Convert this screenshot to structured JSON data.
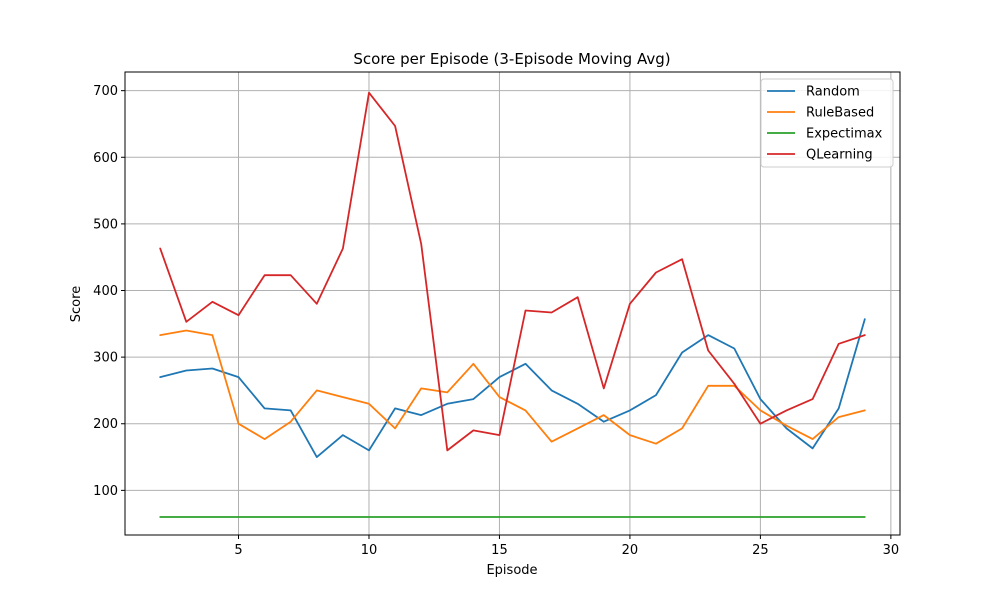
{
  "chart_data": {
    "type": "line",
    "title": "Score per Episode (3-Episode Moving Avg)",
    "xlabel": "Episode",
    "ylabel": "Score",
    "xlim": [
      0.65,
      30.35
    ],
    "ylim": [
      33,
      728
    ],
    "xticks": [
      5,
      10,
      15,
      20,
      25,
      30
    ],
    "yticks": [
      100,
      200,
      300,
      400,
      500,
      600,
      700
    ],
    "grid": true,
    "legend_position": "top-right",
    "x": [
      2,
      3,
      4,
      5,
      6,
      7,
      8,
      9,
      10,
      11,
      12,
      13,
      14,
      15,
      16,
      17,
      18,
      19,
      20,
      21,
      22,
      23,
      24,
      25,
      26,
      27,
      28,
      29
    ],
    "series": [
      {
        "name": "Random",
        "color": "#1f77b4",
        "values": [
          270,
          280,
          283,
          270,
          223,
          220,
          150,
          183,
          160,
          223,
          213,
          230,
          237,
          270,
          290,
          250,
          230,
          203,
          220,
          243,
          307,
          333,
          313,
          237,
          193,
          163,
          223,
          357
        ]
      },
      {
        "name": "RuleBased",
        "color": "#ff7f0e",
        "values": [
          333,
          340,
          333,
          200,
          177,
          203,
          250,
          240,
          230,
          193,
          253,
          247,
          290,
          240,
          220,
          173,
          193,
          213,
          183,
          170,
          193,
          257,
          257,
          220,
          197,
          177,
          210,
          220
        ]
      },
      {
        "name": "Expectimax",
        "color": "#2ca02c",
        "values": [
          60,
          60,
          60,
          60,
          60,
          60,
          60,
          60,
          60,
          60,
          60,
          60,
          60,
          60,
          60,
          60,
          60,
          60,
          60,
          60,
          60,
          60,
          60,
          60,
          60,
          60,
          60,
          60
        ]
      },
      {
        "name": "QLearning",
        "color": "#d62728",
        "values": [
          463,
          353,
          383,
          363,
          423,
          423,
          380,
          463,
          697,
          647,
          470,
          160,
          190,
          183,
          370,
          367,
          390,
          253,
          380,
          427,
          447,
          310,
          260,
          200,
          220,
          237,
          320,
          333
        ]
      }
    ]
  }
}
